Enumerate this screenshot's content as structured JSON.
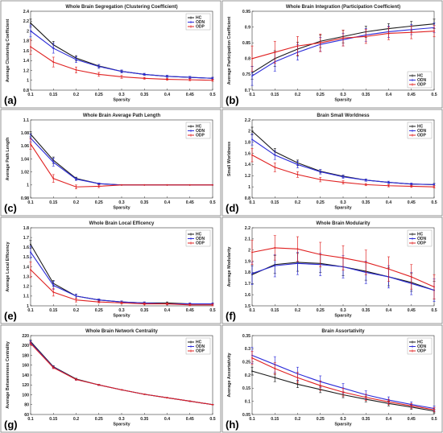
{
  "colors": {
    "HC": "#1a1a1a",
    "ODN": "#2b2bd9",
    "ODP": "#e02020",
    "border": "#7a7a7a"
  },
  "chart_data": [
    {
      "panel": "(a)",
      "type": "line",
      "title": "Whole Brain Segregation (Clustering Coefficient)",
      "xlabel": "Sparsity",
      "ylabel": "Average Clustering Coefficient",
      "x": [
        0.1,
        0.15,
        0.2,
        0.25,
        0.3,
        0.35,
        0.4,
        0.45,
        0.5
      ],
      "xticks": [
        "0.1",
        "0.15",
        "0.2",
        "0.25",
        "0.3",
        "0.35",
        "0.4",
        "0.45",
        "0.5"
      ],
      "ylim": [
        0.8,
        2.4
      ],
      "yticks": [
        "0.8",
        "1",
        "1.2",
        "1.4",
        "1.6",
        "1.8",
        "2",
        "2.2",
        "2.4"
      ],
      "legend": "top-right",
      "grid": false,
      "series": [
        {
          "name": "HC",
          "values": [
            2.16,
            1.72,
            1.45,
            1.29,
            1.18,
            1.12,
            1.08,
            1.06,
            1.04
          ],
          "errors": [
            0.08,
            0.07,
            0.05,
            0.03,
            0.02,
            0.02,
            0.02,
            0.02,
            0.02
          ]
        },
        {
          "name": "ODN",
          "values": [
            2.0,
            1.65,
            1.42,
            1.28,
            1.18,
            1.12,
            1.08,
            1.06,
            1.04
          ],
          "errors": [
            0.12,
            0.1,
            0.06,
            0.04,
            0.03,
            0.02,
            0.02,
            0.02,
            0.02
          ]
        },
        {
          "name": "ODP",
          "values": [
            1.68,
            1.37,
            1.21,
            1.12,
            1.07,
            1.04,
            1.02,
            1.01,
            1.0
          ],
          "errors": [
            0.15,
            0.1,
            0.06,
            0.04,
            0.03,
            0.02,
            0.02,
            0.02,
            0.02
          ]
        }
      ]
    },
    {
      "panel": "(b)",
      "type": "line",
      "title": "Whole Brain Integration (Participation Coefficient)",
      "xlabel": "Sparsity",
      "ylabel": "Average Participation Coefficient",
      "x": [
        0.1,
        0.15,
        0.2,
        0.25,
        0.3,
        0.35,
        0.4,
        0.45,
        0.5
      ],
      "xticks": [
        "0.1",
        "0.15",
        "0.2",
        "0.25",
        "0.3",
        "0.35",
        "0.4",
        "0.45",
        "0.5"
      ],
      "ylim": [
        0.7,
        0.95
      ],
      "yticks": [
        "0.7",
        "0.75",
        "0.8",
        "0.85",
        "0.9",
        "0.95"
      ],
      "legend": "bottom-right",
      "grid": false,
      "series": [
        {
          "name": "HC",
          "values": [
            0.755,
            0.8,
            0.83,
            0.855,
            0.87,
            0.885,
            0.895,
            0.903,
            0.91
          ],
          "errors": [
            0.02,
            0.025,
            0.022,
            0.02,
            0.02,
            0.018,
            0.016,
            0.015,
            0.015
          ]
        },
        {
          "name": "ODN",
          "values": [
            0.745,
            0.79,
            0.82,
            0.845,
            0.86,
            0.875,
            0.885,
            0.892,
            0.898
          ],
          "errors": [
            0.03,
            0.03,
            0.025,
            0.022,
            0.02,
            0.02,
            0.018,
            0.016,
            0.015
          ]
        },
        {
          "name": "ODP",
          "values": [
            0.8,
            0.82,
            0.84,
            0.85,
            0.865,
            0.87,
            0.88,
            0.883,
            0.887
          ],
          "errors": [
            0.04,
            0.035,
            0.03,
            0.028,
            0.025,
            0.022,
            0.02,
            0.02,
            0.018
          ]
        }
      ]
    },
    {
      "panel": "(c)",
      "type": "line",
      "title": "Whole Brain Average Path Length",
      "xlabel": "Sparsity",
      "ylabel": "Average Path Length",
      "x": [
        0.1,
        0.15,
        0.2,
        0.25,
        0.3,
        0.35,
        0.4,
        0.45,
        0.5
      ],
      "xticks": [
        "0.1",
        "0.15",
        "0.2",
        "0.25",
        "0.3",
        "0.35",
        "0.4",
        "0.45",
        "0.5"
      ],
      "ylim": [
        0.98,
        1.1
      ],
      "yticks": [
        "0.98",
        "1",
        "1.02",
        "1.04",
        "1.06",
        "1.08",
        "1.1"
      ],
      "legend": "top-right",
      "grid": false,
      "series": [
        {
          "name": "HC",
          "values": [
            1.078,
            1.038,
            1.01,
            1.002,
            1.0,
            1.0,
            1.0,
            1.0,
            1.0
          ],
          "errors": [
            0.004,
            0.005,
            0.002,
            0.001,
            0,
            0,
            0,
            0,
            0
          ]
        },
        {
          "name": "ODN",
          "values": [
            1.072,
            1.035,
            1.009,
            1.002,
            1.0,
            1.0,
            1.0,
            1.0,
            1.0
          ],
          "errors": [
            0.006,
            0.006,
            0.002,
            0.001,
            0,
            0,
            0,
            0,
            0
          ]
        },
        {
          "name": "ODP",
          "values": [
            1.063,
            1.01,
            0.997,
            0.998,
            1.0,
            1.0,
            1.0,
            1.0,
            1.0
          ],
          "errors": [
            0.008,
            0.006,
            0.003,
            0.002,
            0,
            0,
            0,
            0,
            0
          ]
        }
      ]
    },
    {
      "panel": "(d)",
      "type": "line",
      "title": "Brain Small Worldness",
      "xlabel": "Sparsity",
      "ylabel": "Small Worldness",
      "x": [
        0.1,
        0.15,
        0.2,
        0.25,
        0.3,
        0.35,
        0.4,
        0.45,
        0.5
      ],
      "xticks": [
        "0.1",
        "0.15",
        "0.2",
        "0.25",
        "0.3",
        "0.35",
        "0.4",
        "0.45",
        "0.5"
      ],
      "ylim": [
        0.8,
        2.2
      ],
      "yticks": [
        "0.8",
        "1",
        "1.2",
        "1.4",
        "1.6",
        "1.8",
        "2",
        "2.2"
      ],
      "legend": "top-right",
      "grid": false,
      "series": [
        {
          "name": "HC",
          "values": [
            2.0,
            1.63,
            1.43,
            1.28,
            1.19,
            1.12,
            1.08,
            1.05,
            1.04
          ],
          "errors": [
            0.07,
            0.06,
            0.05,
            0.03,
            0.02,
            0.02,
            0.02,
            0.02,
            0.02
          ]
        },
        {
          "name": "ODN",
          "values": [
            1.85,
            1.57,
            1.4,
            1.27,
            1.18,
            1.12,
            1.08,
            1.05,
            1.04
          ],
          "errors": [
            0.1,
            0.08,
            0.06,
            0.04,
            0.03,
            0.02,
            0.02,
            0.02,
            0.02
          ]
        },
        {
          "name": "ODP",
          "values": [
            1.57,
            1.35,
            1.22,
            1.13,
            1.08,
            1.04,
            1.02,
            1.01,
            1.0
          ],
          "errors": [
            0.12,
            0.08,
            0.05,
            0.04,
            0.03,
            0.02,
            0.02,
            0.02,
            0.02
          ]
        }
      ]
    },
    {
      "panel": "(e)",
      "type": "line",
      "title": "Whole Brain Local Efficency",
      "xlabel": "Sparsity",
      "ylabel": "Average Local Efficency",
      "x": [
        0.1,
        0.15,
        0.2,
        0.25,
        0.3,
        0.35,
        0.4,
        0.45,
        0.5
      ],
      "xticks": [
        "0.1",
        "0.15",
        "0.2",
        "0.25",
        "0.3",
        "0.35",
        "0.4",
        "0.45",
        "0.5"
      ],
      "ylim": [
        1.0,
        1.8
      ],
      "yticks": [
        "1",
        "1.1",
        "1.2",
        "1.3",
        "1.4",
        "1.5",
        "1.6",
        "1.7",
        "1.8"
      ],
      "legend": "top-right",
      "grid": false,
      "series": [
        {
          "name": "HC",
          "values": [
            1.63,
            1.23,
            1.1,
            1.06,
            1.04,
            1.03,
            1.03,
            1.02,
            1.02
          ],
          "errors": [
            0.04,
            0.03,
            0.02,
            0.01,
            0.01,
            0.01,
            0.01,
            0.01,
            0.01
          ]
        },
        {
          "name": "ODN",
          "values": [
            1.55,
            1.21,
            1.1,
            1.06,
            1.04,
            1.03,
            1.02,
            1.02,
            1.02
          ],
          "errors": [
            0.06,
            0.04,
            0.02,
            0.01,
            0.01,
            0.01,
            0.01,
            0.01,
            0.01
          ]
        },
        {
          "name": "ODP",
          "values": [
            1.37,
            1.14,
            1.06,
            1.04,
            1.03,
            1.02,
            1.02,
            1.01,
            1.01
          ],
          "errors": [
            0.08,
            0.04,
            0.02,
            0.01,
            0.01,
            0.01,
            0.01,
            0.01,
            0.01
          ]
        }
      ]
    },
    {
      "panel": "(f)",
      "type": "line",
      "title": "Whole Brain Modularity",
      "xlabel": "Sparsity",
      "ylabel": "Average Modularity",
      "x": [
        0.1,
        0.15,
        0.2,
        0.25,
        0.3,
        0.35,
        0.4,
        0.45,
        0.5
      ],
      "xticks": [
        "0.1",
        "0.15",
        "0.2",
        "0.25",
        "0.3",
        "0.35",
        "0.4",
        "0.45",
        "0.5"
      ],
      "ylim": [
        1.5,
        2.2
      ],
      "yticks": [
        "1.5",
        "1.6",
        "1.7",
        "1.8",
        "1.9",
        "2",
        "2.1",
        "2.2"
      ],
      "legend": "top-right",
      "grid": false,
      "series": [
        {
          "name": "HC",
          "values": [
            1.78,
            1.87,
            1.89,
            1.88,
            1.85,
            1.81,
            1.76,
            1.71,
            1.64
          ],
          "errors": [
            0.08,
            0.08,
            0.08,
            0.08,
            0.08,
            0.08,
            0.08,
            0.08,
            0.08
          ]
        },
        {
          "name": "ODN",
          "values": [
            1.79,
            1.86,
            1.88,
            1.87,
            1.85,
            1.8,
            1.76,
            1.7,
            1.64
          ],
          "errors": [
            0.1,
            0.1,
            0.1,
            0.1,
            0.1,
            0.1,
            0.1,
            0.1,
            0.1
          ]
        },
        {
          "name": "ODP",
          "values": [
            1.98,
            2.02,
            2.01,
            1.96,
            1.93,
            1.89,
            1.83,
            1.76,
            1.67
          ],
          "errors": [
            0.11,
            0.11,
            0.11,
            0.11,
            0.11,
            0.11,
            0.11,
            0.11,
            0.11
          ]
        }
      ]
    },
    {
      "panel": "(g)",
      "type": "line",
      "title": "Whole Brain Network Centrality",
      "xlabel": "Sparsity",
      "ylabel": "Average Betweenness Centrality",
      "x": [
        0.1,
        0.15,
        0.2,
        0.25,
        0.3,
        0.35,
        0.4,
        0.45,
        0.5
      ],
      "xticks": [
        "0.1",
        "0.15",
        "0.2",
        "0.25",
        "0.3",
        "0.35",
        "0.4",
        "0.45",
        "0.5"
      ],
      "ylim": [
        60,
        220
      ],
      "yticks": [
        "60",
        "80",
        "100",
        "120",
        "140",
        "160",
        "180",
        "200",
        "220"
      ],
      "legend": "top-right",
      "grid": false,
      "series": [
        {
          "name": "HC",
          "values": [
            208,
            157,
            132,
            120,
            110,
            101,
            94,
            87,
            80
          ],
          "errors": [
            3,
            2,
            1.5,
            1,
            0.5,
            0.5,
            0.5,
            0.5,
            0.5
          ]
        },
        {
          "name": "ODN",
          "values": [
            206,
            156,
            131,
            120,
            110,
            101,
            94,
            87,
            80
          ],
          "errors": [
            3,
            2,
            1.5,
            1,
            0.5,
            0.5,
            0.5,
            0.5,
            0.5
          ]
        },
        {
          "name": "ODP",
          "values": [
            204,
            155,
            131,
            120,
            110,
            101,
            94,
            87,
            80
          ],
          "errors": [
            3,
            2,
            1.5,
            1,
            0.5,
            0.5,
            0.5,
            0.5,
            0.5
          ]
        }
      ]
    },
    {
      "panel": "(h)",
      "type": "line",
      "title": "Brain Assortativity",
      "xlabel": "Sparsity",
      "ylabel": "Average Assortativity",
      "x": [
        0.1,
        0.15,
        0.2,
        0.25,
        0.3,
        0.35,
        0.4,
        0.45,
        0.5
      ],
      "xticks": [
        "0.1",
        "0.15",
        "0.2",
        "0.25",
        "0.3",
        "0.35",
        "0.4",
        "0.45",
        "0.5"
      ],
      "ylim": [
        0.05,
        0.35
      ],
      "yticks": [
        "0.05",
        "0.1",
        "0.15",
        "0.2",
        "0.25",
        "0.3",
        "0.35"
      ],
      "legend": "top-right",
      "grid": false,
      "series": [
        {
          "name": "HC",
          "values": [
            0.215,
            0.19,
            0.165,
            0.145,
            0.125,
            0.108,
            0.092,
            0.078,
            0.063
          ],
          "errors": [
            0.015,
            0.015,
            0.013,
            0.012,
            0.011,
            0.01,
            0.009,
            0.008,
            0.007
          ]
        },
        {
          "name": "ODN",
          "values": [
            0.275,
            0.24,
            0.205,
            0.175,
            0.15,
            0.125,
            0.105,
            0.088,
            0.073
          ],
          "errors": [
            0.03,
            0.03,
            0.025,
            0.022,
            0.018,
            0.015,
            0.012,
            0.01,
            0.009
          ]
        },
        {
          "name": "ODP",
          "values": [
            0.265,
            0.225,
            0.19,
            0.16,
            0.135,
            0.115,
            0.098,
            0.083,
            0.068
          ],
          "errors": [
            0.025,
            0.022,
            0.02,
            0.018,
            0.015,
            0.012,
            0.01,
            0.009,
            0.008
          ]
        }
      ]
    }
  ]
}
